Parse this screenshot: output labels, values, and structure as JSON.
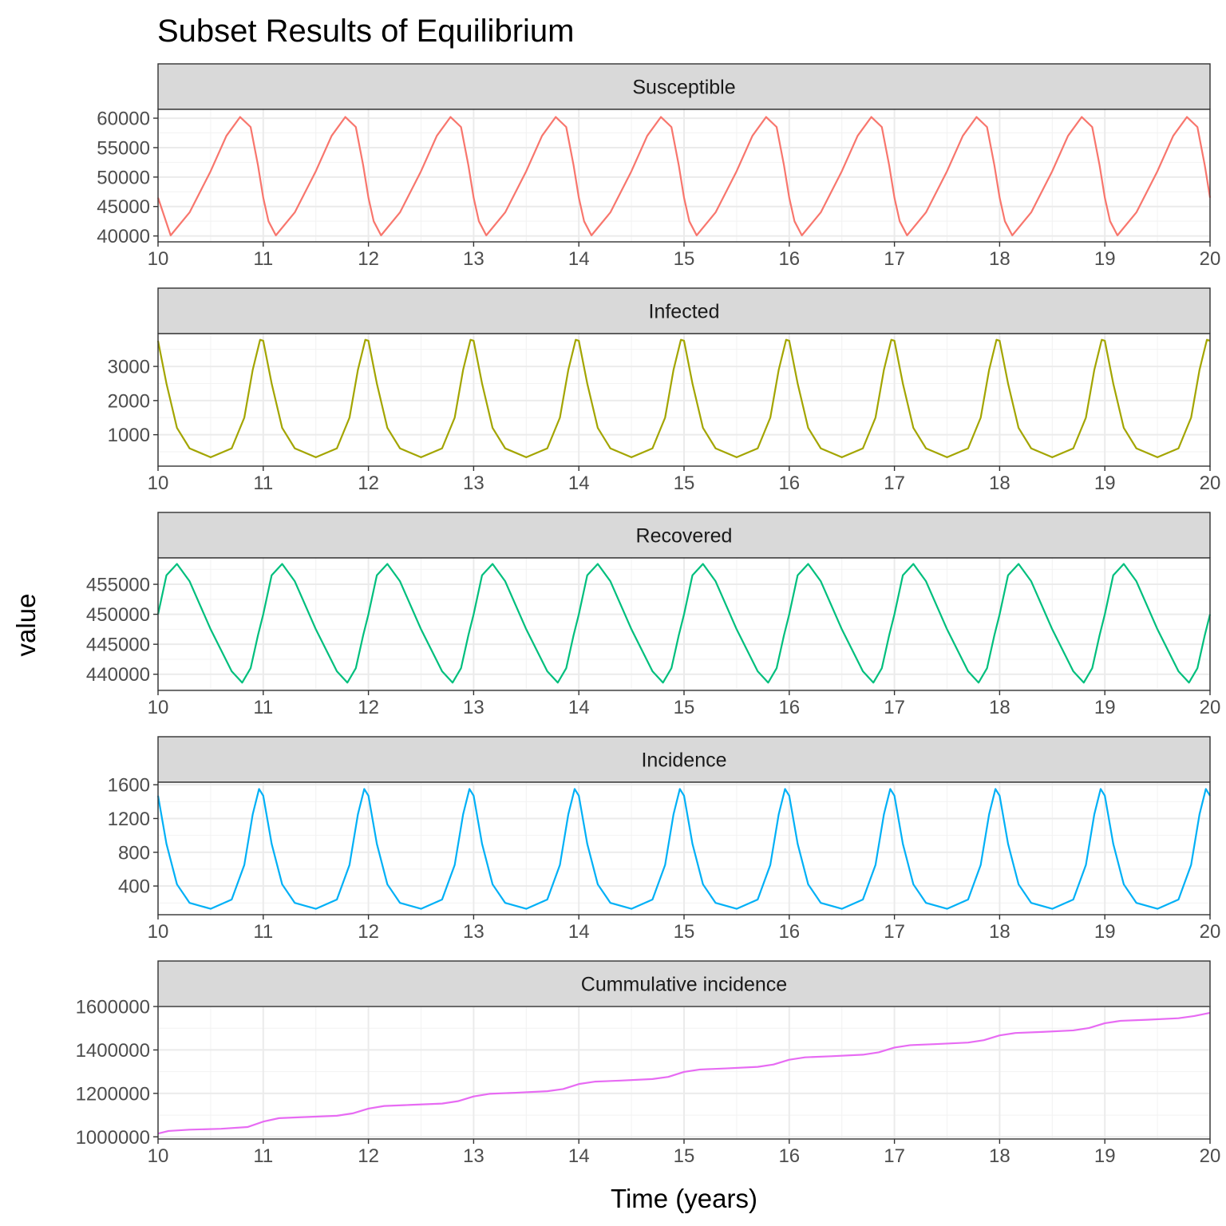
{
  "chart_data": {
    "type": "line",
    "title": "Subset Results of Equilibrium",
    "xlabel": "Time (years)",
    "ylabel": "value",
    "grid": true,
    "legend": "none",
    "x_ticks": [
      "10",
      "11",
      "12",
      "13",
      "14",
      "15",
      "16",
      "17",
      "18",
      "19",
      "20"
    ],
    "xlim": [
      10,
      20
    ],
    "panels": [
      {
        "name": "Susceptible",
        "color": "#F8766D",
        "ylim": [
          39000,
          61500
        ],
        "y_ticks": [
          40000,
          45000,
          50000,
          55000,
          60000
        ],
        "y_tick_labels": [
          "40000",
          "45000",
          "50000",
          "55000",
          "60000"
        ],
        "x": [
          10.0,
          10.12,
          10.3,
          10.5,
          10.65,
          10.78,
          10.88,
          10.95,
          11.0,
          11.05,
          11.12,
          11.3,
          11.5,
          11.65,
          11.78,
          11.88,
          11.95,
          12.0,
          12.05,
          12.12,
          12.3,
          12.5,
          12.65,
          12.78,
          12.88,
          12.95,
          13.0,
          13.05,
          13.12,
          13.3,
          13.5,
          13.65,
          13.78,
          13.88,
          13.95,
          14.0,
          14.05,
          14.12,
          14.3,
          14.5,
          14.65,
          14.78,
          14.88,
          14.95,
          15.0,
          15.05,
          15.12,
          15.3,
          15.5,
          15.65,
          15.78,
          15.88,
          15.95,
          16.0,
          16.05,
          16.12,
          16.3,
          16.5,
          16.65,
          16.78,
          16.88,
          16.95,
          17.0,
          17.05,
          17.12,
          17.3,
          17.5,
          17.65,
          17.78,
          17.88,
          17.95,
          18.0,
          18.05,
          18.12,
          18.3,
          18.5,
          18.65,
          18.78,
          18.88,
          18.95,
          19.0,
          19.05,
          19.12,
          19.3,
          19.5,
          19.65,
          19.78,
          19.88,
          19.95,
          20.0
        ],
        "y": [
          46500,
          40100,
          44000,
          51000,
          57000,
          60200,
          58500,
          52000,
          46500,
          42500,
          40100,
          44000,
          51000,
          57000,
          60200,
          58500,
          52000,
          46500,
          42500,
          40100,
          44000,
          51000,
          57000,
          60200,
          58500,
          52000,
          46500,
          42500,
          40100,
          44000,
          51000,
          57000,
          60200,
          58500,
          52000,
          46500,
          42500,
          40100,
          44000,
          51000,
          57000,
          60200,
          58500,
          52000,
          46500,
          42500,
          40100,
          44000,
          51000,
          57000,
          60200,
          58500,
          52000,
          46500,
          42500,
          40100,
          44000,
          51000,
          57000,
          60200,
          58500,
          52000,
          46500,
          42500,
          40100,
          44000,
          51000,
          57000,
          60200,
          58500,
          52000,
          46500,
          42500,
          40100,
          44000,
          51000,
          57000,
          60200,
          58500,
          52000,
          46500,
          42500,
          40100,
          44000,
          51000,
          57000,
          60200,
          58500,
          52000,
          46500
        ]
      },
      {
        "name": "Infected",
        "color": "#A3A500",
        "ylim": [
          80,
          3960
        ],
        "y_ticks": [
          1000,
          2000,
          3000
        ],
        "y_tick_labels": [
          "1000",
          "2000",
          "3000"
        ],
        "x": [
          10.0,
          10.08,
          10.18,
          10.3,
          10.5,
          10.7,
          10.82,
          10.9,
          10.97,
          11.0,
          11.08,
          11.18,
          11.3,
          11.5,
          11.7,
          11.82,
          11.9,
          11.97,
          12.0,
          12.08,
          12.18,
          12.3,
          12.5,
          12.7,
          12.82,
          12.9,
          12.97,
          13.0,
          13.08,
          13.18,
          13.3,
          13.5,
          13.7,
          13.82,
          13.9,
          13.97,
          14.0,
          14.08,
          14.18,
          14.3,
          14.5,
          14.7,
          14.82,
          14.9,
          14.97,
          15.0,
          15.08,
          15.18,
          15.3,
          15.5,
          15.7,
          15.82,
          15.9,
          15.97,
          16.0,
          16.08,
          16.18,
          16.3,
          16.5,
          16.7,
          16.82,
          16.9,
          16.97,
          17.0,
          17.08,
          17.18,
          17.3,
          17.5,
          17.7,
          17.82,
          17.9,
          17.97,
          18.0,
          18.08,
          18.18,
          18.3,
          18.5,
          18.7,
          18.82,
          18.9,
          18.97,
          19.0,
          19.08,
          19.18,
          19.3,
          19.5,
          19.7,
          19.82,
          19.9,
          19.97,
          20.0
        ],
        "y": [
          3750,
          2500,
          1200,
          600,
          340,
          600,
          1500,
          2900,
          3780,
          3750,
          2500,
          1200,
          600,
          340,
          600,
          1500,
          2900,
          3780,
          3750,
          2500,
          1200,
          600,
          340,
          600,
          1500,
          2900,
          3780,
          3750,
          2500,
          1200,
          600,
          340,
          600,
          1500,
          2900,
          3780,
          3750,
          2500,
          1200,
          600,
          340,
          600,
          1500,
          2900,
          3780,
          3750,
          2500,
          1200,
          600,
          340,
          600,
          1500,
          2900,
          3780,
          3750,
          2500,
          1200,
          600,
          340,
          600,
          1500,
          2900,
          3780,
          3750,
          2500,
          1200,
          600,
          340,
          600,
          1500,
          2900,
          3780,
          3750,
          2500,
          1200,
          600,
          340,
          600,
          1500,
          2900,
          3780,
          3750,
          2500,
          1200,
          600,
          340,
          600,
          1500,
          2900,
          3780,
          3750
        ]
      },
      {
        "name": "Recovered",
        "color": "#00BF7D",
        "ylim": [
          437300,
          459400
        ],
        "y_ticks": [
          440000,
          445000,
          450000,
          455000
        ],
        "y_tick_labels": [
          "440000",
          "445000",
          "450000",
          "455000"
        ],
        "x": [
          10.0,
          10.08,
          10.18,
          10.3,
          10.5,
          10.7,
          10.8,
          10.88,
          10.95,
          11.0,
          11.08,
          11.18,
          11.3,
          11.5,
          11.7,
          11.8,
          11.88,
          11.95,
          12.0,
          12.08,
          12.18,
          12.3,
          12.5,
          12.7,
          12.8,
          12.88,
          12.95,
          13.0,
          13.08,
          13.18,
          13.3,
          13.5,
          13.7,
          13.8,
          13.88,
          13.95,
          14.0,
          14.08,
          14.18,
          14.3,
          14.5,
          14.7,
          14.8,
          14.88,
          14.95,
          15.0,
          15.08,
          15.18,
          15.3,
          15.5,
          15.7,
          15.8,
          15.88,
          15.95,
          16.0,
          16.08,
          16.18,
          16.3,
          16.5,
          16.7,
          16.8,
          16.88,
          16.95,
          17.0,
          17.08,
          17.18,
          17.3,
          17.5,
          17.7,
          17.8,
          17.88,
          17.95,
          18.0,
          18.08,
          18.18,
          18.3,
          18.5,
          18.7,
          18.8,
          18.88,
          18.95,
          19.0,
          19.08,
          19.18,
          19.3,
          19.5,
          19.7,
          19.8,
          19.88,
          19.95,
          20.0
        ],
        "y": [
          450000,
          456500,
          458400,
          455500,
          447500,
          440500,
          438600,
          441000,
          446500,
          450000,
          456500,
          458400,
          455500,
          447500,
          440500,
          438600,
          441000,
          446500,
          450000,
          456500,
          458400,
          455500,
          447500,
          440500,
          438600,
          441000,
          446500,
          450000,
          456500,
          458400,
          455500,
          447500,
          440500,
          438600,
          441000,
          446500,
          450000,
          456500,
          458400,
          455500,
          447500,
          440500,
          438600,
          441000,
          446500,
          450000,
          456500,
          458400,
          455500,
          447500,
          440500,
          438600,
          441000,
          446500,
          450000,
          456500,
          458400,
          455500,
          447500,
          440500,
          438600,
          441000,
          446500,
          450000,
          456500,
          458400,
          455500,
          447500,
          440500,
          438600,
          441000,
          446500,
          450000,
          456500,
          458400,
          455500,
          447500,
          440500,
          438600,
          441000,
          446500,
          450000,
          456500,
          458400,
          455500,
          447500,
          440500,
          438600,
          441000,
          446500,
          450000
        ]
      },
      {
        "name": "Incidence",
        "color": "#00B0F6",
        "ylim": [
          60,
          1630
        ],
        "y_ticks": [
          400,
          800,
          1200,
          1600
        ],
        "y_tick_labels": [
          "400",
          "800",
          "1200",
          "1600"
        ],
        "x": [
          10.0,
          10.08,
          10.18,
          10.3,
          10.5,
          10.7,
          10.82,
          10.9,
          10.96,
          11.0,
          11.08,
          11.18,
          11.3,
          11.5,
          11.7,
          11.82,
          11.9,
          11.96,
          12.0,
          12.08,
          12.18,
          12.3,
          12.5,
          12.7,
          12.82,
          12.9,
          12.96,
          13.0,
          13.08,
          13.18,
          13.3,
          13.5,
          13.7,
          13.82,
          13.9,
          13.96,
          14.0,
          14.08,
          14.18,
          14.3,
          14.5,
          14.7,
          14.82,
          14.9,
          14.96,
          15.0,
          15.08,
          15.18,
          15.3,
          15.5,
          15.7,
          15.82,
          15.9,
          15.96,
          16.0,
          16.08,
          16.18,
          16.3,
          16.5,
          16.7,
          16.82,
          16.9,
          16.96,
          17.0,
          17.08,
          17.18,
          17.3,
          17.5,
          17.7,
          17.82,
          17.9,
          17.96,
          18.0,
          18.08,
          18.18,
          18.3,
          18.5,
          18.7,
          18.82,
          18.9,
          18.96,
          19.0,
          19.08,
          19.18,
          19.3,
          19.5,
          19.7,
          19.82,
          19.9,
          19.96,
          20.0
        ],
        "y": [
          1470,
          900,
          420,
          200,
          130,
          240,
          650,
          1250,
          1550,
          1470,
          900,
          420,
          200,
          130,
          240,
          650,
          1250,
          1550,
          1470,
          900,
          420,
          200,
          130,
          240,
          650,
          1250,
          1550,
          1470,
          900,
          420,
          200,
          130,
          240,
          650,
          1250,
          1550,
          1470,
          900,
          420,
          200,
          130,
          240,
          650,
          1250,
          1550,
          1470,
          900,
          420,
          200,
          130,
          240,
          650,
          1250,
          1550,
          1470,
          900,
          420,
          200,
          130,
          240,
          650,
          1250,
          1550,
          1470,
          900,
          420,
          200,
          130,
          240,
          650,
          1250,
          1550,
          1470,
          900,
          420,
          200,
          130,
          240,
          650,
          1250,
          1550,
          1470,
          900,
          420,
          200,
          130,
          240,
          650,
          1250,
          1550,
          1470
        ]
      },
      {
        "name": "Cummulative incidence",
        "color": "#E76BF3",
        "ylim": [
          990000,
          1600000
        ],
        "y_ticks": [
          1000000,
          1200000,
          1400000,
          1600000
        ],
        "y_tick_labels": [
          "1000000",
          "1200000",
          "1400000",
          "1600000"
        ],
        "x": [
          10.0,
          10.1,
          10.3,
          10.6,
          10.85,
          11.0,
          11.15,
          11.4,
          11.7,
          11.85,
          12.0,
          12.15,
          12.4,
          12.7,
          12.85,
          13.0,
          13.15,
          13.4,
          13.7,
          13.85,
          14.0,
          14.15,
          14.4,
          14.7,
          14.85,
          15.0,
          15.15,
          15.4,
          15.7,
          15.85,
          16.0,
          16.15,
          16.4,
          16.7,
          16.85,
          17.0,
          17.15,
          17.4,
          17.7,
          17.85,
          18.0,
          18.15,
          18.4,
          18.7,
          18.85,
          19.0,
          19.15,
          19.4,
          19.7,
          19.85,
          20.0
        ],
        "y": [
          1015000,
          1027000,
          1033000,
          1037000,
          1045000,
          1070000,
          1086000,
          1091000,
          1097000,
          1108000,
          1130000,
          1142000,
          1147000,
          1153000,
          1164000,
          1186000,
          1198000,
          1203000,
          1210000,
          1220000,
          1243000,
          1254000,
          1259000,
          1266000,
          1276000,
          1299000,
          1310000,
          1315000,
          1322000,
          1333000,
          1355000,
          1366000,
          1371000,
          1378000,
          1389000,
          1411000,
          1422000,
          1427000,
          1434000,
          1445000,
          1467000,
          1478000,
          1483000,
          1490000,
          1501000,
          1523000,
          1534000,
          1539000,
          1546000,
          1556000,
          1571000
        ]
      }
    ]
  }
}
